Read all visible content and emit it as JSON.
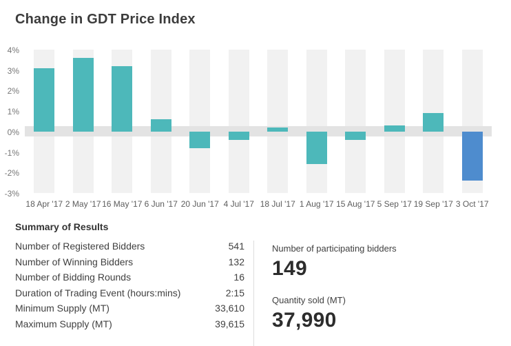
{
  "title": "Change in GDT Price Index",
  "chart_data": {
    "type": "bar",
    "title": "Change in GDT Price Index",
    "categories": [
      "18 Apr '17",
      "2 May '17",
      "16 May '17",
      "6 Jun '17",
      "20 Jun '17",
      "4 Jul '17",
      "18 Jul '17",
      "1 Aug '17",
      "15 Aug '17",
      "5 Sep '17",
      "19 Sep '17",
      "3 Oct '17"
    ],
    "values": [
      3.1,
      3.6,
      3.2,
      0.6,
      -0.8,
      -0.4,
      0.2,
      -1.6,
      -0.4,
      0.3,
      0.9,
      -2.4
    ],
    "unit": "%",
    "xlabel": "",
    "ylabel": "",
    "ylim": [
      -3,
      4
    ],
    "ytick_labels": [
      "4%",
      "3%",
      "2%",
      "1%",
      "0%",
      "-1%",
      "-2%",
      "-3%"
    ],
    "legend": "none",
    "grid": "column-bands-with-zero-band",
    "bar_color": "#4db8ba",
    "highlight_color": "#4e8cce",
    "highlight_index": 11,
    "band_color": "#f1f1f1",
    "zero_band_color": "#e3e3e3"
  },
  "summary": {
    "heading": "Summary of Results",
    "rows": [
      {
        "label": "Number of Registered Bidders",
        "value": "541"
      },
      {
        "label": "Number of Winning Bidders",
        "value": "132"
      },
      {
        "label": "Number of Bidding Rounds",
        "value": "16"
      },
      {
        "label": "Duration of Trading Event (hours:mins)",
        "value": "2:15"
      },
      {
        "label": "Minimum Supply (MT)",
        "value": "33,610"
      },
      {
        "label": "Maximum Supply (MT)",
        "value": "39,615"
      }
    ],
    "stats": [
      {
        "label": "Number of participating bidders",
        "value": "149"
      },
      {
        "label": "Quantity sold (MT)",
        "value": "37,990"
      }
    ]
  }
}
